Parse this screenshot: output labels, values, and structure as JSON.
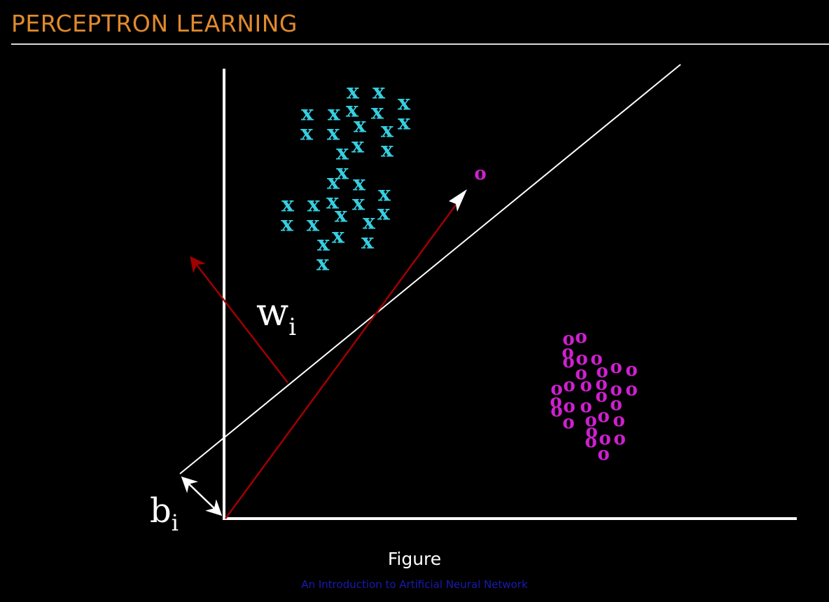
{
  "slide": {
    "title": "PERCEPTRON LEARNING"
  },
  "figure": {
    "weight_label": "w",
    "weight_subscript": "i",
    "bias_label": "b",
    "bias_subscript": "i",
    "cross_marker": "x",
    "circle_marker": "o"
  },
  "caption": {
    "label": "Figure",
    "source": "An Introduction to Artificial Neural Network"
  },
  "colors": {
    "title": "#e08a2c",
    "axes": "#ffffff",
    "decision_line": "#ffffff",
    "weight_vector": "#a00000",
    "class_x": "#36cfe0",
    "class_o": "#d020d0",
    "source_caption": "#1a1ab0"
  }
}
